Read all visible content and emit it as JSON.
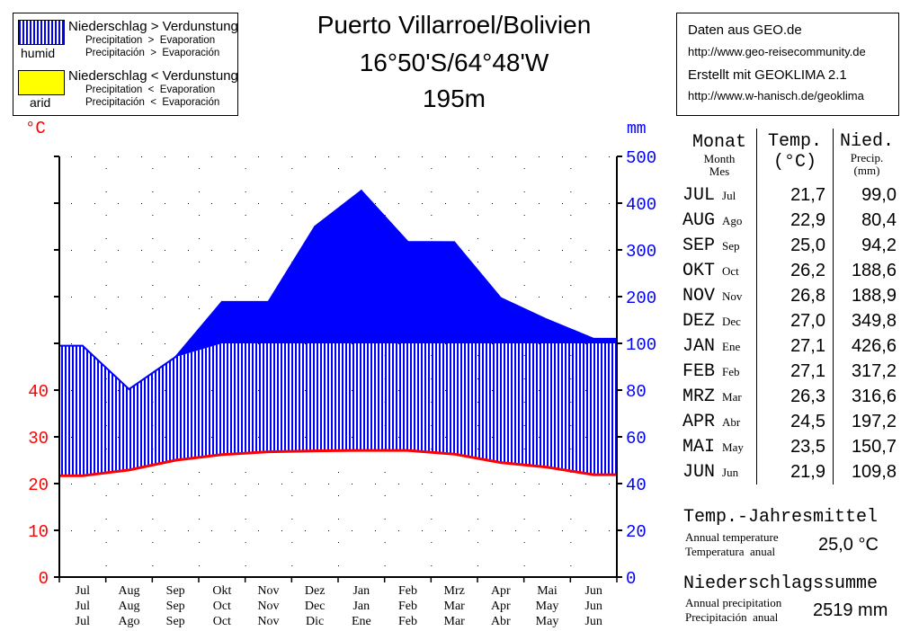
{
  "legend": {
    "humid_title": "Niederschlag > Verdunstung",
    "humid_en": "Precipitation  >  Evaporation",
    "humid_es": "Precipitación  >  Evaporación",
    "humid_label": "humid",
    "arid_title": "Niederschlag < Verdunstung",
    "arid_en": "Precipitation  <  Evaporation",
    "arid_es": "Precipitación  <  Evaporación",
    "arid_label": "arid",
    "humid_color": "#0000ff",
    "arid_color": "#ffff00"
  },
  "station": {
    "name": "Puerto Villarroel/Bolivien",
    "coords": "16°50'S/64°48'W",
    "elevation": "195m"
  },
  "source": {
    "line1": "Daten aus GEO.de",
    "line2": "http://www.geo-reisecommunity.de",
    "line3": "Erstellt mit GEOKLIMA 2.1",
    "line4": "http://www.w-hanisch.de/geoklima"
  },
  "table": {
    "head_month": "Monat",
    "head_month_en": "Month",
    "head_month_es": "Mes",
    "head_temp": "Temp.",
    "head_temp_unit": "(°C)",
    "head_prec": "Nied.",
    "head_prec_en": "Precip.",
    "head_prec_unit": "(mm)",
    "rows": [
      {
        "de": "JUL",
        "es": "Jul",
        "temp": "21,7",
        "prec": "99,0"
      },
      {
        "de": "AUG",
        "es": "Ago",
        "temp": "22,9",
        "prec": "80,4"
      },
      {
        "de": "SEP",
        "es": "Sep",
        "temp": "25,0",
        "prec": "94,2"
      },
      {
        "de": "OKT",
        "es": "Oct",
        "temp": "26,2",
        "prec": "188,6"
      },
      {
        "de": "NOV",
        "es": "Nov",
        "temp": "26,8",
        "prec": "188,9"
      },
      {
        "de": "DEZ",
        "es": "Dec",
        "temp": "27,0",
        "prec": "349,8"
      },
      {
        "de": "JAN",
        "es": "Ene",
        "temp": "27,1",
        "prec": "426,6"
      },
      {
        "de": "FEB",
        "es": "Feb",
        "temp": "27,1",
        "prec": "317,2"
      },
      {
        "de": "MRZ",
        "es": "Mar",
        "temp": "26,3",
        "prec": "316,6"
      },
      {
        "de": "APR",
        "es": "Abr",
        "temp": "24,5",
        "prec": "197,2"
      },
      {
        "de": "MAI",
        "es": "May",
        "temp": "23,5",
        "prec": "150,7"
      },
      {
        "de": "JUN",
        "es": "Jun",
        "temp": "21,9",
        "prec": "109,8"
      }
    ]
  },
  "annual": {
    "temp_title": "Temp.-Jahresmittel",
    "temp_en": "Annual temperature",
    "temp_es": "Temperatura  anual",
    "temp_value": "25,0 °C",
    "prec_title": "Niederschlagssumme",
    "prec_en": "Annual precipitation",
    "prec_es": "Precipitación  anual",
    "prec_value": "2519 mm"
  },
  "chart_data": {
    "type": "area",
    "title": "Puerto Villarroel/Bolivien",
    "subtitle": "16°50'S/64°48'W 195m",
    "y_left_label": "°C",
    "y_right_label": "mm",
    "y_left_ticks": [
      "0",
      "10",
      "20",
      "30",
      "40"
    ],
    "y_right_ticks": [
      "0",
      "20",
      "40",
      "60",
      "80",
      "100",
      "200",
      "300",
      "400",
      "500"
    ],
    "temp_range": [
      0,
      50
    ],
    "precip_scale_note": "0-100 mm linear (20 mm = 10 °C), above 100 mm compressed (100 mm per step)",
    "x_de": [
      "Jul",
      "Aug",
      "Sep",
      "Okt",
      "Nov",
      "Dez",
      "Jan",
      "Feb",
      "Mrz",
      "Apr",
      "Mai",
      "Jun"
    ],
    "x_en": [
      "Jul",
      "Aug",
      "Sep",
      "Oct",
      "Nov",
      "Dec",
      "Jan",
      "Feb",
      "Mar",
      "Apr",
      "May",
      "Jun"
    ],
    "x_es": [
      "Jul",
      "Ago",
      "Sep",
      "Oct",
      "Nov",
      "Dic",
      "Ene",
      "Feb",
      "Mar",
      "Abr",
      "May",
      "Jun"
    ],
    "series": [
      {
        "name": "Temp. (°C)",
        "values": [
          21.7,
          22.9,
          25.0,
          26.2,
          26.8,
          27.0,
          27.1,
          27.1,
          26.3,
          24.5,
          23.5,
          21.9
        ],
        "color": "#ff0000"
      },
      {
        "name": "Nied. (mm)",
        "values": [
          99.0,
          80.4,
          94.2,
          188.6,
          188.9,
          349.8,
          426.6,
          317.2,
          316.6,
          197.2,
          150.7,
          109.8
        ],
        "color": "#0000ff"
      }
    ],
    "grid": "dotted"
  }
}
